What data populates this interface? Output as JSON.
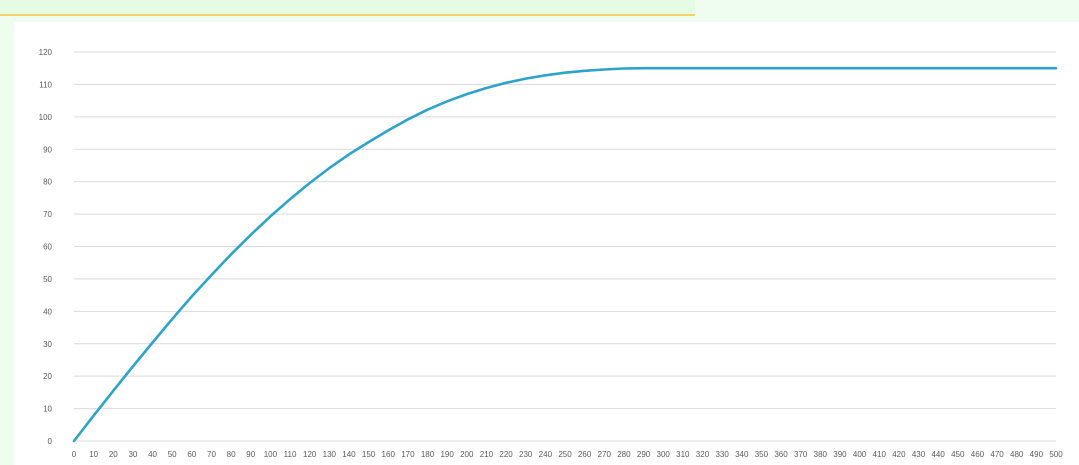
{
  "chart_data": {
    "type": "line",
    "title": "",
    "xlabel": "",
    "ylabel": "",
    "xlim": [
      0,
      500
    ],
    "ylim": [
      0,
      120
    ],
    "x_ticks": [
      0,
      10,
      20,
      30,
      40,
      50,
      60,
      70,
      80,
      90,
      100,
      110,
      120,
      130,
      140,
      150,
      160,
      170,
      180,
      190,
      200,
      210,
      220,
      230,
      240,
      250,
      260,
      270,
      280,
      290,
      300,
      310,
      320,
      330,
      340,
      350,
      360,
      370,
      380,
      390,
      400,
      410,
      420,
      430,
      440,
      450,
      460,
      470,
      480,
      490,
      500
    ],
    "y_ticks": [
      0,
      10,
      20,
      30,
      40,
      50,
      60,
      70,
      80,
      90,
      100,
      110,
      120
    ],
    "grid": "horizontal",
    "legend": "none",
    "series": [
      {
        "color": "#2ea3c9",
        "x": [
          0,
          10,
          20,
          30,
          40,
          50,
          60,
          70,
          80,
          90,
          100,
          110,
          120,
          130,
          140,
          150,
          160,
          170,
          180,
          190,
          200,
          210,
          220,
          230,
          240,
          250,
          260,
          270,
          280,
          290,
          300,
          350,
          400,
          450,
          500
        ],
        "values": [
          0,
          7.8,
          15.5,
          23,
          30.4,
          37.6,
          44.6,
          51.2,
          57.6,
          63.6,
          69.3,
          74.6,
          79.6,
          84.2,
          88.4,
          92.2,
          95.8,
          99.2,
          102.2,
          104.8,
          107.0,
          108.9,
          110.5,
          111.8,
          112.8,
          113.6,
          114.2,
          114.6,
          114.9,
          115,
          115,
          115,
          115,
          115,
          115
        ]
      }
    ]
  }
}
